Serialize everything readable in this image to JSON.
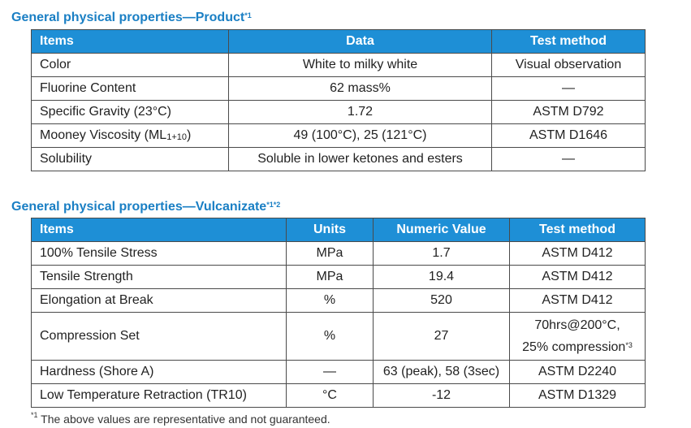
{
  "product": {
    "title": "General physical properties—Product",
    "title_note": "*1",
    "headers": [
      "Items",
      "Data",
      "Test method"
    ],
    "rows": [
      {
        "item": "Color",
        "data": "White to milky white",
        "method": "Visual observation"
      },
      {
        "item": "Fluorine Content",
        "data": "62 mass%",
        "method": "—"
      },
      {
        "item": "Specific Gravity (23°C)",
        "data": "1.72",
        "method": "ASTM D792"
      },
      {
        "item_main": "Mooney Viscosity (ML",
        "item_sub": "1+10",
        "item_end": ")",
        "data": "49 (100°C), 25 (121°C)",
        "method": "ASTM D1646"
      },
      {
        "item": "Solubility",
        "data": "Soluble in lower ketones and esters",
        "method": "—"
      }
    ]
  },
  "vulcanizate": {
    "title": "General physical properties—Vulcanizate",
    "title_note": "*1*2",
    "headers": [
      "Items",
      "Units",
      "Numeric Value",
      "Test method"
    ],
    "rows": [
      {
        "item": "100% Tensile Stress",
        "units": "MPa",
        "value": "1.7",
        "method": "ASTM D412"
      },
      {
        "item": "Tensile Strength",
        "units": "MPa",
        "value": "19.4",
        "method": "ASTM D412"
      },
      {
        "item": "Elongation at Break",
        "units": "%",
        "value": "520",
        "method": "ASTM D412"
      },
      {
        "item": "Compression Set",
        "units": "%",
        "value": "27",
        "method_line1": "70hrs@200°C,",
        "method_line2": "25% compression",
        "method_note": "*3"
      },
      {
        "item": "Hardness (Shore A)",
        "units": "—",
        "value": "63 (peak), 58 (3sec)",
        "method": "ASTM D2240"
      },
      {
        "item": "Low Temperature Retraction (TR10)",
        "units": "°C",
        "value": "-12",
        "method": "ASTM D1329"
      }
    ]
  },
  "footnote": {
    "marker": "*1",
    "text": " The above values are representative and not guaranteed."
  }
}
